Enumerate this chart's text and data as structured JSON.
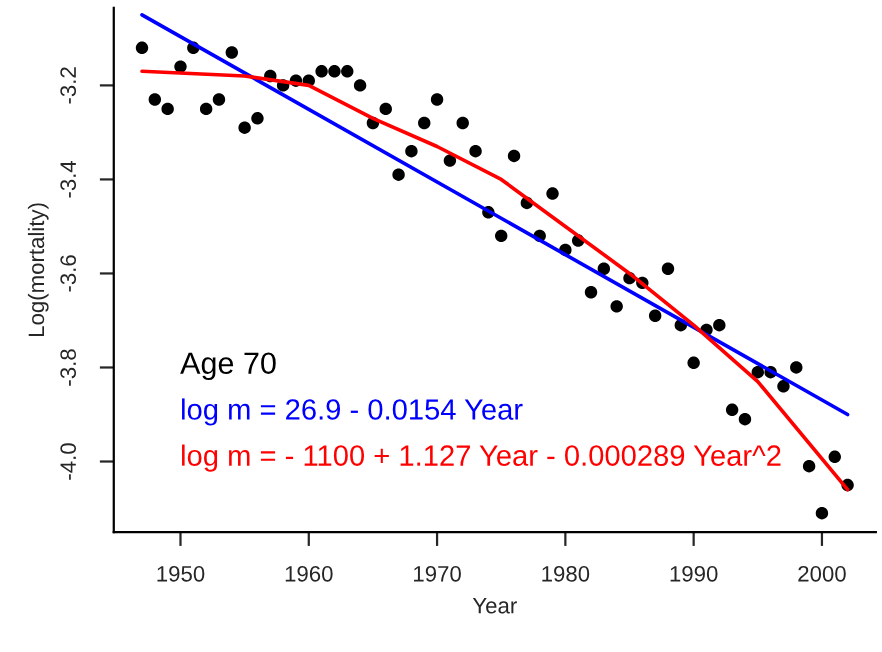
{
  "chart_data": {
    "type": "scatter",
    "xlabel": "Year",
    "ylabel": "Log(mortality)",
    "x": [
      1947,
      1948,
      1949,
      1950,
      1951,
      1952,
      1953,
      1954,
      1955,
      1956,
      1957,
      1958,
      1959,
      1960,
      1961,
      1962,
      1963,
      1964,
      1965,
      1966,
      1967,
      1968,
      1969,
      1970,
      1971,
      1972,
      1973,
      1974,
      1975,
      1976,
      1977,
      1978,
      1979,
      1980,
      1981,
      1982,
      1983,
      1984,
      1985,
      1986,
      1987,
      1988,
      1989,
      1990,
      1991,
      1992,
      1993,
      1994,
      1995,
      1996,
      1997,
      1998,
      1999,
      2000,
      2001,
      2002
    ],
    "series": [
      {
        "color": "#000000",
        "marker": "circle",
        "values": [
          -3.12,
          -3.23,
          -3.25,
          -3.16,
          -3.12,
          -3.25,
          -3.23,
          -3.13,
          -3.29,
          -3.27,
          -3.18,
          -3.2,
          -3.19,
          -3.19,
          -3.17,
          -3.17,
          -3.17,
          -3.2,
          -3.28,
          -3.25,
          -3.39,
          -3.34,
          -3.28,
          -3.23,
          -3.36,
          -3.28,
          -3.34,
          -3.47,
          -3.52,
          -3.35,
          -3.45,
          -3.52,
          -3.43,
          -3.55,
          -3.53,
          -3.64,
          -3.59,
          -3.67,
          -3.61,
          -3.62,
          -3.69,
          -3.59,
          -3.71,
          -3.79,
          -3.72,
          -3.71,
          -3.89,
          -3.91,
          -3.81,
          -3.81,
          -3.84,
          -3.8,
          -4.01,
          -4.11,
          -3.99,
          -4.05
        ]
      },
      {
        "type": "line",
        "name": "log m = 26.9 - 0.0154 Year",
        "color": "#0000ff",
        "x": [
          1947,
          2002
        ],
        "values": [
          -3.05,
          -3.9
        ]
      },
      {
        "type": "line",
        "name": "log m = - 1100 + 1.127 Year - 0.000289 Year^2",
        "color": "#ff0000",
        "x": [
          1947,
          1955,
          1960,
          1965,
          1970,
          1975,
          1980,
          1985,
          1990,
          1995,
          2002
        ],
        "values": [
          -3.17,
          -3.18,
          -3.2,
          -3.27,
          -3.33,
          -3.4,
          -3.5,
          -3.6,
          -3.71,
          -3.83,
          -4.06
        ]
      }
    ],
    "annotations": [
      "Age 70"
    ],
    "xlim": [
      1944.8,
      2004.2
    ],
    "ylim": [
      -4.15,
      -3.035
    ],
    "xticks": [
      1950,
      1960,
      1970,
      1980,
      1990,
      2000
    ],
    "yticks": [
      {
        "value": -4.0,
        "label": "-4.0"
      },
      {
        "value": -3.8,
        "label": "-3.8"
      },
      {
        "value": -3.6,
        "label": "-3.6"
      },
      {
        "value": -3.4,
        "label": "-3.4"
      },
      {
        "value": -3.2,
        "label": "-3.2"
      }
    ],
    "grid": false,
    "legend": false
  }
}
